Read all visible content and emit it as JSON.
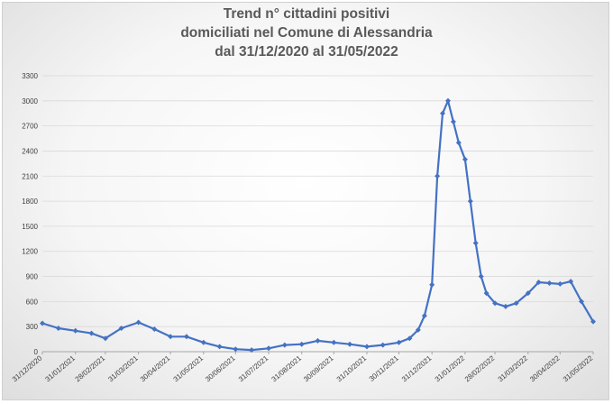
{
  "chart_data": {
    "type": "line",
    "title_lines": [
      "Trend n° cittadini positivi",
      "domiciliati nel Comune di Alessandria",
      "dal 31/12/2020 al 31/05/2022"
    ],
    "xlabel": "",
    "ylabel": "",
    "ylim": [
      0,
      3300
    ],
    "y_ticks": [
      0,
      300,
      600,
      900,
      1200,
      1500,
      1800,
      2100,
      2400,
      2700,
      3000,
      3300
    ],
    "x_tick_labels": [
      "31/12/2020",
      "31/01/2021",
      "28/02/2021",
      "31/03/2021",
      "30/04/2021",
      "31/05/2021",
      "30/06/2021",
      "31/07/2021",
      "31/08/2021",
      "30/09/2021",
      "31/10/2021",
      "30/11/2021",
      "31/12/2021",
      "31/01/2022",
      "28/02/2022",
      "31/03/2022",
      "30/04/2022",
      "31/05/2022"
    ],
    "grid": true,
    "series_color": "#4472c4",
    "series": [
      {
        "x": [
          "31/12/2020",
          "15/01/2021",
          "31/01/2021",
          "15/02/2021",
          "28/02/2021",
          "15/03/2021",
          "31/03/2021",
          "15/04/2021",
          "30/04/2021",
          "15/05/2021",
          "31/05/2021",
          "15/06/2021",
          "30/06/2021",
          "15/07/2021",
          "31/07/2021",
          "15/08/2021",
          "31/08/2021",
          "15/09/2021",
          "30/09/2021",
          "15/10/2021",
          "31/10/2021",
          "15/11/2021",
          "30/11/2021",
          "10/12/2021",
          "18/12/2021",
          "24/12/2021",
          "31/12/2021",
          "05/01/2022",
          "10/01/2022",
          "15/01/2022",
          "20/01/2022",
          "25/01/2022",
          "31/01/2022",
          "05/02/2022",
          "10/02/2022",
          "15/02/2022",
          "20/02/2022",
          "28/02/2022",
          "10/03/2022",
          "20/03/2022",
          "31/03/2022",
          "10/04/2022",
          "20/04/2022",
          "30/04/2022",
          "10/05/2022",
          "20/05/2022",
          "31/05/2022"
        ],
        "values": [
          340,
          280,
          250,
          220,
          160,
          280,
          350,
          270,
          180,
          180,
          110,
          60,
          30,
          20,
          40,
          80,
          90,
          130,
          110,
          90,
          60,
          80,
          110,
          160,
          260,
          430,
          800,
          2100,
          2850,
          3000,
          2750,
          2500,
          2300,
          1800,
          1300,
          900,
          700,
          580,
          540,
          580,
          700,
          830,
          820,
          810,
          840,
          600,
          360
        ]
      }
    ]
  }
}
